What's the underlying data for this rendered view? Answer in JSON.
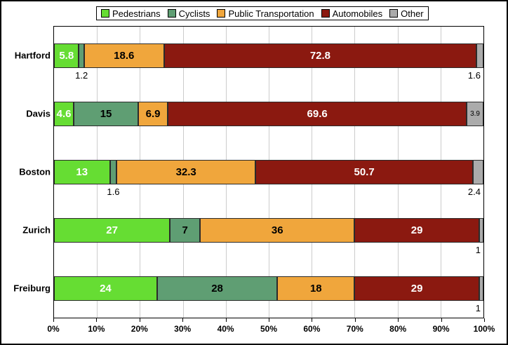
{
  "chart_data": {
    "type": "bar",
    "orientation": "horizontal-stacked",
    "categories": [
      "Hartford",
      "Davis",
      "Boston",
      "Zurich",
      "Freiburg"
    ],
    "series": [
      {
        "name": "Pedestrians",
        "color": "#66DD33",
        "values": [
          5.8,
          4.6,
          13,
          27,
          24
        ]
      },
      {
        "name": "Cyclists",
        "color": "#5F9E73",
        "values": [
          1.2,
          15,
          1.6,
          7,
          28
        ]
      },
      {
        "name": "Public Transportation",
        "color": "#F0A63C",
        "values": [
          18.6,
          6.9,
          32.3,
          36,
          18
        ]
      },
      {
        "name": "Automobiles",
        "color": "#8B1910",
        "values": [
          72.8,
          69.6,
          50.7,
          29,
          29
        ]
      },
      {
        "name": "Other",
        "color": "#ABABAB",
        "values": [
          1.6,
          3.9,
          2.4,
          1,
          1
        ]
      }
    ],
    "label_text_colors": [
      "#FFFFFF",
      "#000000",
      "#000000",
      "#FFFFFF",
      "#000000"
    ],
    "label_layout": [
      [
        "inside",
        "below",
        "inside",
        "inside",
        "below"
      ],
      [
        "inside",
        "inside",
        "inside",
        "inside",
        "inside-small"
      ],
      [
        "inside",
        "below",
        "inside",
        "inside",
        "below"
      ],
      [
        "inside",
        "inside",
        "inside",
        "inside",
        "below"
      ],
      [
        "inside",
        "inside",
        "inside",
        "inside",
        "below"
      ]
    ],
    "xlim": [
      0,
      100
    ],
    "x_ticks": [
      "0%",
      "10%",
      "20%",
      "30%",
      "40%",
      "50%",
      "60%",
      "70%",
      "80%",
      "90%",
      "100%"
    ],
    "grid": true,
    "legend_position": "top",
    "title": "",
    "xlabel": "",
    "ylabel": ""
  },
  "colors": {
    "grid": "#cccccc",
    "plot_border": "#000000",
    "frame_border": "#000000",
    "background": "#ffffff"
  }
}
